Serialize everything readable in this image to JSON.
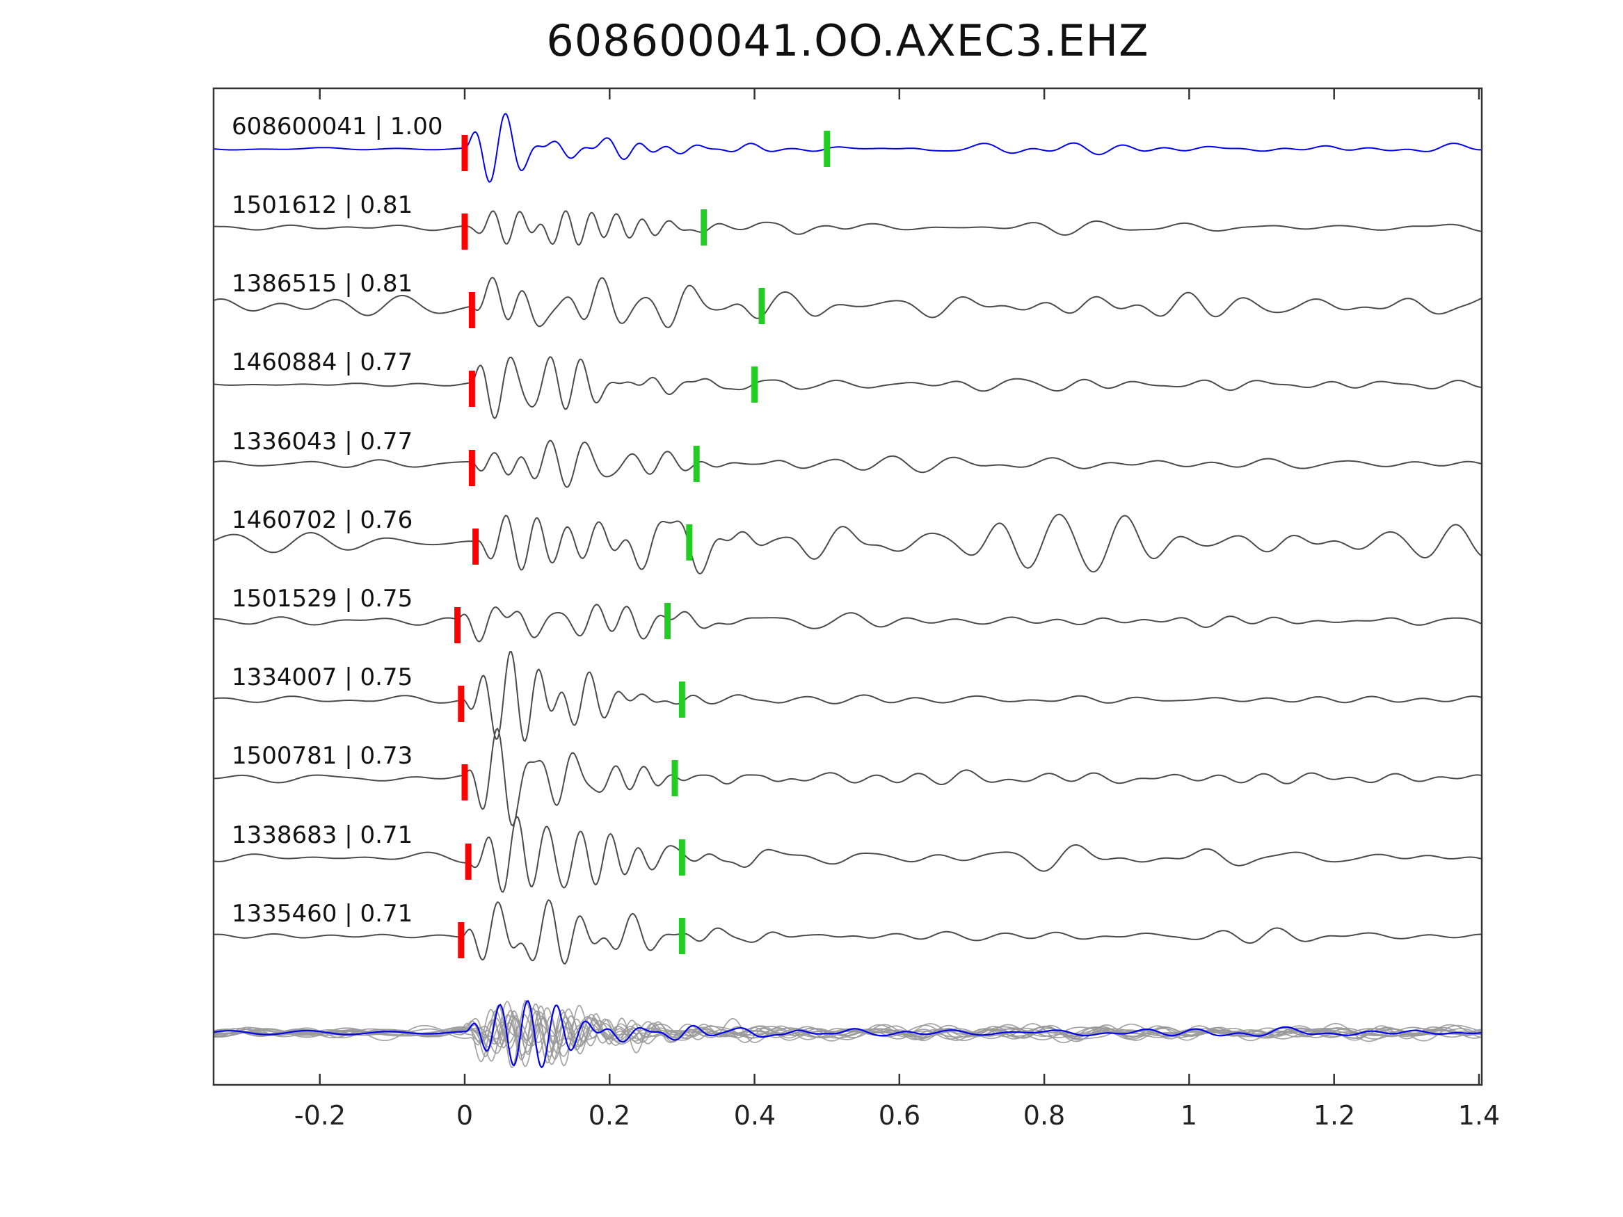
{
  "title": "608600041.OO.AXEC3.EHZ",
  "chart_data": {
    "type": "line",
    "title": "608600041.OO.AXEC3.EHZ",
    "xlabel": "",
    "ylabel": "",
    "xlim": [
      -0.344,
      1.4
    ],
    "grid": false,
    "legend": "none",
    "x_ticks": [
      "-0.2",
      "0",
      "0.2",
      "0.4",
      "0.6",
      "0.8",
      "1",
      "1.2",
      "1.4"
    ],
    "x_tick_values": [
      -0.2,
      0,
      0.2,
      0.4,
      0.6,
      0.8,
      1.0,
      1.2,
      1.4
    ],
    "colors": {
      "template_trace": "#0000ee",
      "detection_trace": "#4a4a4a",
      "stack_gray": "#999999",
      "red_pick": "#ff0000",
      "green_pick": "#22cc22",
      "axis": "#333333"
    },
    "traces": [
      {
        "label": "608600041 | 1.00",
        "id": "608600041",
        "similarity": 1.0,
        "red_pick": 0.0,
        "green_pick": 0.5,
        "color": "#0000ee",
        "noise": 3,
        "burst": 55,
        "coda": 10
      },
      {
        "label": "1501612 | 0.81",
        "id": "1501612",
        "similarity": 0.81,
        "red_pick": 0.0,
        "green_pick": 0.33,
        "color": "#4a4a4a",
        "noise": 5,
        "burst": 50,
        "coda": 13
      },
      {
        "label": "1386515 | 0.81",
        "id": "1386515",
        "similarity": 0.81,
        "red_pick": 0.01,
        "green_pick": 0.41,
        "color": "#4a4a4a",
        "noise": 12,
        "burst": 50,
        "coda": 26
      },
      {
        "label": "1460884 | 0.77",
        "id": "1460884",
        "similarity": 0.77,
        "red_pick": 0.01,
        "green_pick": 0.4,
        "color": "#4a4a4a",
        "noise": 8,
        "burst": 50,
        "coda": 18
      },
      {
        "label": "1336043 | 0.77",
        "id": "1336043",
        "similarity": 0.77,
        "red_pick": 0.01,
        "green_pick": 0.32,
        "color": "#4a4a4a",
        "noise": 6,
        "burst": 50,
        "coda": 14
      },
      {
        "label": "1460702 | 0.76",
        "id": "1460702",
        "similarity": 0.76,
        "red_pick": 0.015,
        "green_pick": 0.31,
        "color": "#4a4a4a",
        "noise": 16,
        "burst": 48,
        "coda": 26
      },
      {
        "label": "1501529 | 0.75",
        "id": "1501529",
        "similarity": 0.75,
        "red_pick": -0.01,
        "green_pick": 0.28,
        "color": "#4a4a4a",
        "noise": 5,
        "burst": 52,
        "coda": 12
      },
      {
        "label": "1334007 | 0.75",
        "id": "1334007",
        "similarity": 0.75,
        "red_pick": -0.005,
        "green_pick": 0.3,
        "color": "#4a4a4a",
        "noise": 5,
        "burst": 45,
        "coda": 13
      },
      {
        "label": "1500781 | 0.73",
        "id": "1500781",
        "similarity": 0.73,
        "red_pick": 0.0,
        "green_pick": 0.29,
        "color": "#4a4a4a",
        "noise": 8,
        "burst": 50,
        "coda": 14
      },
      {
        "label": "1338683 | 0.71",
        "id": "1338683",
        "similarity": 0.71,
        "red_pick": 0.005,
        "green_pick": 0.3,
        "color": "#4a4a4a",
        "noise": 9,
        "burst": 48,
        "coda": 15
      },
      {
        "label": "1335460 | 0.71",
        "id": "1335460",
        "similarity": 0.71,
        "red_pick": -0.005,
        "green_pick": 0.3,
        "color": "#4a4a4a",
        "noise": 5,
        "burst": 48,
        "coda": 13
      }
    ],
    "stack": {
      "gray_trace_count": 12,
      "overlay_color": "#0000ee"
    }
  }
}
